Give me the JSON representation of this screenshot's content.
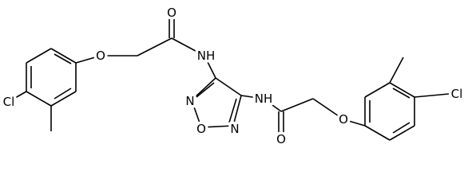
{
  "atoms": {
    "labels": [
      "Cl",
      "O",
      "O",
      "NH",
      "N",
      "O",
      "N",
      "NH",
      "O",
      "O",
      "Cl"
    ]
  }
}
